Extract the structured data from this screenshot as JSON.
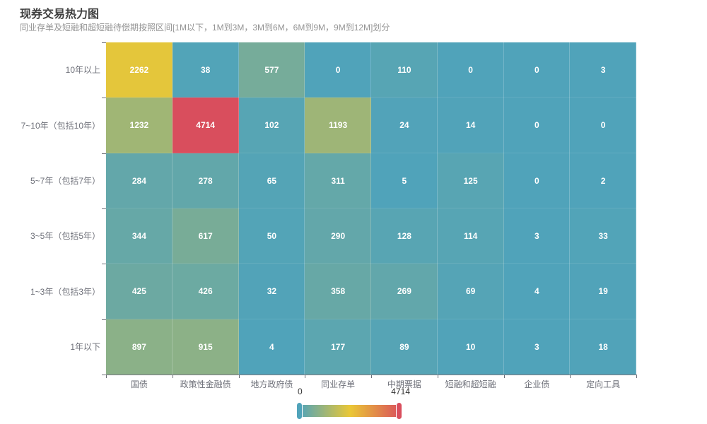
{
  "title": {
    "text": "现券交易热力图",
    "subtext": "同业存单及短融和超短融待偿期按照区间[1M以下，1M到3M，3M到6M，6M到9M，9M到12M]划分"
  },
  "visual_map": {
    "min_label": "0",
    "max_label": "4714",
    "gradient_colors": [
      "#50a3ba",
      "#eac736",
      "#d94e5d"
    ]
  },
  "chart_data": {
    "type": "heatmap",
    "title": "现券交易热力图",
    "x_categories": [
      "国债",
      "政策性金融债",
      "地方政府债",
      "同业存单",
      "中期票据",
      "短融和超短融",
      "企业债",
      "定向工具"
    ],
    "y_categories": [
      "10年以上",
      "7~10年（包括10年）",
      "5~7年（包括7年）",
      "3~5年（包括5年）",
      "1~3年（包括3年）",
      "1年以下"
    ],
    "y_order": "top-to-bottom",
    "values": [
      [
        2262,
        38,
        577,
        0,
        110,
        0,
        0,
        3
      ],
      [
        1232,
        4714,
        102,
        1193,
        24,
        14,
        0,
        0
      ],
      [
        284,
        278,
        65,
        311,
        5,
        125,
        0,
        2
      ],
      [
        344,
        617,
        50,
        290,
        128,
        114,
        3,
        33
      ],
      [
        425,
        426,
        32,
        358,
        269,
        69,
        4,
        19
      ],
      [
        897,
        915,
        4,
        177,
        89,
        10,
        3,
        18
      ]
    ],
    "value_min": 0,
    "value_max": 4714,
    "color_scale": [
      "#50a3ba",
      "#eac736",
      "#d94e5d"
    ],
    "grid": "off",
    "legend_position": "bottom-center"
  }
}
